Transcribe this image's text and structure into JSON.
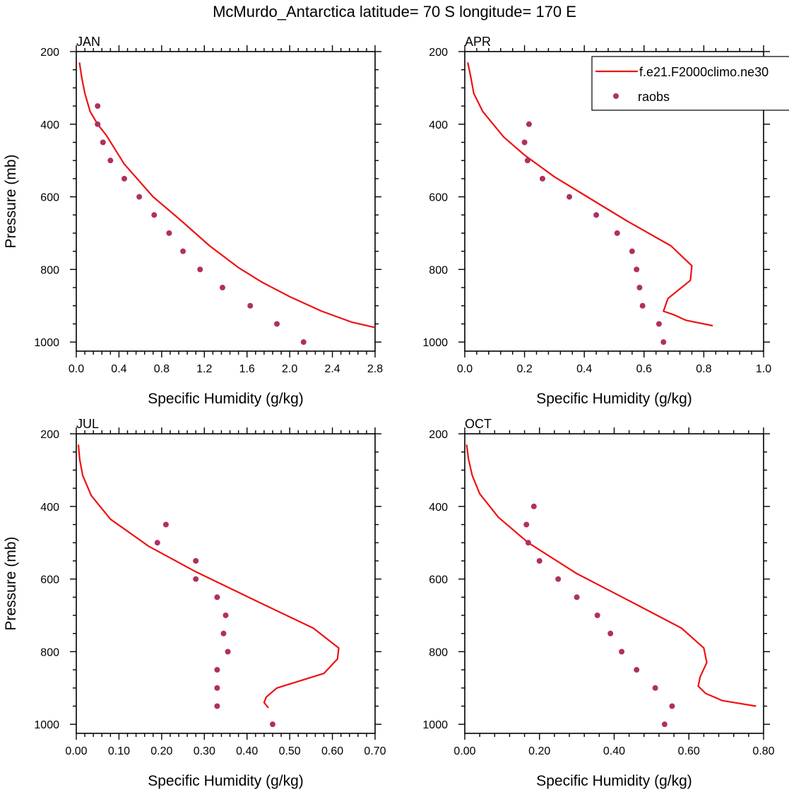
{
  "title": "McMurdo_Antarctica  latitude= 70 S longitude= 170 E",
  "legend": {
    "placement": "top-right of APR panel",
    "model_label": "f.e21.F2000climo.ne30",
    "obs_label": "raobs"
  },
  "colors": {
    "model": "#ee1111",
    "obs": "#b03060",
    "axis": "#000000"
  },
  "chart_data": [
    {
      "type": "line",
      "panel": "JAN",
      "xlabel": "Specific Humidity (g/kg)",
      "ylabel": "Pressure (mb)",
      "xlim": [
        0,
        2.8
      ],
      "ylim": [
        200,
        1025
      ],
      "y_reversed": true,
      "xticks": [
        0.0,
        0.4,
        0.8,
        1.2,
        1.6,
        2.0,
        2.4,
        2.8
      ],
      "xtick_labels": [
        "0.0",
        "0.4",
        "0.8",
        "1.2",
        "1.6",
        "2.0",
        "2.4",
        "2.8"
      ],
      "yticks": [
        200,
        400,
        600,
        800,
        1000
      ],
      "ytick_labels": [
        "200",
        "400",
        "600",
        "800",
        "1000"
      ],
      "series": [
        {
          "name": "f.e21.F2000climo.ne30",
          "style": "line",
          "x": [
            0.03,
            0.05,
            0.08,
            0.13,
            0.2,
            0.28,
            0.45,
            0.72,
            1.0,
            1.25,
            1.52,
            1.74,
            2.0,
            2.3,
            2.58,
            2.8
          ],
          "y": [
            230,
            270,
            315,
            365,
            400,
            430,
            510,
            600,
            670,
            735,
            795,
            835,
            875,
            915,
            945,
            960
          ]
        },
        {
          "name": "raobs",
          "style": "marker",
          "x": [
            0.2,
            0.2,
            0.25,
            0.32,
            0.45,
            0.59,
            0.73,
            0.87,
            1.0,
            1.16,
            1.37,
            1.63,
            1.88,
            2.13
          ],
          "y": [
            350,
            400,
            450,
            500,
            550,
            600,
            650,
            700,
            750,
            800,
            850,
            900,
            950,
            1000
          ]
        }
      ]
    },
    {
      "type": "line",
      "panel": "APR",
      "xlabel": "Specific Humidity (g/kg)",
      "ylabel": "",
      "xlim": [
        0,
        1.0
      ],
      "ylim": [
        200,
        1025
      ],
      "y_reversed": true,
      "xticks": [
        0.0,
        0.2,
        0.4,
        0.6,
        0.8,
        1.0
      ],
      "xtick_labels": [
        "0.0",
        "0.2",
        "0.4",
        "0.6",
        "0.8",
        "1.0"
      ],
      "yticks": [
        200,
        400,
        600,
        800,
        1000
      ],
      "ytick_labels": [
        "200",
        "400",
        "600",
        "800",
        "1000"
      ],
      "series": [
        {
          "name": "f.e21.F2000climo.ne30",
          "style": "line",
          "x": [
            0.01,
            0.02,
            0.03,
            0.06,
            0.13,
            0.2,
            0.3,
            0.4,
            0.54,
            0.69,
            0.76,
            0.755,
            0.68,
            0.665,
            0.7,
            0.74,
            0.83
          ],
          "y": [
            230,
            270,
            315,
            365,
            435,
            485,
            545,
            595,
            665,
            735,
            790,
            830,
            880,
            915,
            925,
            940,
            955
          ]
        },
        {
          "name": "raobs",
          "style": "marker",
          "x": [
            0.215,
            0.2,
            0.21,
            0.26,
            0.35,
            0.44,
            0.51,
            0.56,
            0.575,
            0.585,
            0.595,
            0.65,
            0.665
          ],
          "y": [
            400,
            450,
            500,
            550,
            600,
            650,
            700,
            750,
            800,
            850,
            900,
            950,
            1000
          ]
        }
      ]
    },
    {
      "type": "line",
      "panel": "JUL",
      "xlabel": "Specific Humidity (g/kg)",
      "ylabel": "Pressure (mb)",
      "xlim": [
        0,
        0.7
      ],
      "ylim": [
        200,
        1025
      ],
      "y_reversed": true,
      "xticks": [
        0.0,
        0.1,
        0.2,
        0.3,
        0.4,
        0.5,
        0.6,
        0.7
      ],
      "xtick_labels": [
        "0.00",
        "0.10",
        "0.20",
        "0.30",
        "0.40",
        "0.50",
        "0.60",
        "0.70"
      ],
      "yticks": [
        200,
        400,
        600,
        800,
        1000
      ],
      "ytick_labels": [
        "200",
        "400",
        "600",
        "800",
        "1000"
      ],
      "series": [
        {
          "name": "f.e21.F2000climo.ne30",
          "style": "line",
          "x": [
            0.005,
            0.008,
            0.015,
            0.035,
            0.08,
            0.17,
            0.28,
            0.43,
            0.555,
            0.615,
            0.612,
            0.58,
            0.47,
            0.445,
            0.44,
            0.45
          ],
          "y": [
            230,
            270,
            315,
            370,
            435,
            510,
            580,
            665,
            735,
            790,
            820,
            860,
            900,
            925,
            940,
            955
          ]
        },
        {
          "name": "raobs",
          "style": "marker",
          "x": [
            0.21,
            0.19,
            0.28,
            0.28,
            0.33,
            0.35,
            0.345,
            0.355,
            0.33,
            0.33,
            0.33,
            0.46
          ],
          "y": [
            450,
            500,
            550,
            600,
            650,
            700,
            750,
            800,
            850,
            900,
            950,
            1000
          ]
        }
      ]
    },
    {
      "type": "line",
      "panel": "OCT",
      "xlabel": "Specific Humidity (g/kg)",
      "ylabel": "",
      "xlim": [
        0,
        0.8
      ],
      "ylim": [
        200,
        1025
      ],
      "y_reversed": true,
      "xticks": [
        0.0,
        0.2,
        0.4,
        0.6,
        0.8
      ],
      "xtick_labels": [
        "0.00",
        "0.20",
        "0.40",
        "0.60",
        "0.80"
      ],
      "yticks": [
        200,
        400,
        600,
        800,
        1000
      ],
      "ytick_labels": [
        "200",
        "400",
        "600",
        "800",
        "1000"
      ],
      "series": [
        {
          "name": "f.e21.F2000climo.ne30",
          "style": "line",
          "x": [
            0.005,
            0.01,
            0.02,
            0.04,
            0.09,
            0.17,
            0.3,
            0.45,
            0.58,
            0.64,
            0.648,
            0.63,
            0.625,
            0.645,
            0.69,
            0.78
          ],
          "y": [
            230,
            270,
            315,
            365,
            430,
            500,
            585,
            665,
            735,
            790,
            830,
            870,
            895,
            915,
            935,
            950
          ]
        },
        {
          "name": "raobs",
          "style": "marker",
          "x": [
            0.185,
            0.165,
            0.17,
            0.2,
            0.25,
            0.3,
            0.355,
            0.39,
            0.42,
            0.46,
            0.51,
            0.555,
            0.535
          ],
          "y": [
            400,
            450,
            500,
            550,
            600,
            650,
            700,
            750,
            800,
            850,
            900,
            950,
            1000
          ]
        }
      ]
    }
  ]
}
